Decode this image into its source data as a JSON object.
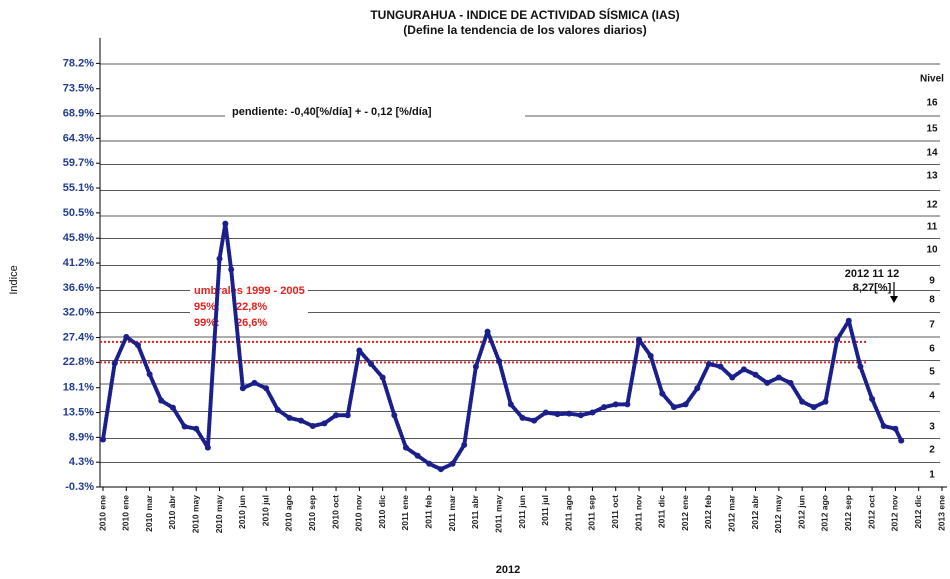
{
  "chart_data": {
    "type": "scatter",
    "title": "TUNGURAHUA - INDICE DE ACTIVIDAD SÍSMICA (IAS)",
    "subtitle": "(Define la tendencia de los valores diarios)",
    "y_label": "Indice",
    "x_label": "2012",
    "xlim": [
      0,
      36
    ],
    "xticks": [
      {
        "value": 0,
        "label": "2010 ene"
      },
      {
        "value": 1,
        "label": "2010 ene"
      },
      {
        "value": 2,
        "label": "2010 mar"
      },
      {
        "value": 3,
        "label": "2010 abr"
      },
      {
        "value": 4,
        "label": "2010 may"
      },
      {
        "value": 5,
        "label": "2010 may"
      },
      {
        "value": 6,
        "label": "2010 jun"
      },
      {
        "value": 7,
        "label": "2010 jul"
      },
      {
        "value": 8,
        "label": "2010 ago"
      },
      {
        "value": 9,
        "label": "2010 sep"
      },
      {
        "value": 10,
        "label": "2010 oct"
      },
      {
        "value": 11,
        "label": "2010 nov"
      },
      {
        "value": 12,
        "label": "2010 dic"
      },
      {
        "value": 13,
        "label": "2011 ene"
      },
      {
        "value": 14,
        "label": "2011 feb"
      },
      {
        "value": 15,
        "label": "2011 mar"
      },
      {
        "value": 16,
        "label": "2011 abr"
      },
      {
        "value": 17,
        "label": "2011 may"
      },
      {
        "value": 18,
        "label": "2011 jun"
      },
      {
        "value": 19,
        "label": "2011 jul"
      },
      {
        "value": 20,
        "label": "2011 ago"
      },
      {
        "value": 21,
        "label": "2011 sep"
      },
      {
        "value": 22,
        "label": "2011 oct"
      },
      {
        "value": 23,
        "label": "2011 nov"
      },
      {
        "value": 24,
        "label": "2011 dic"
      },
      {
        "value": 25,
        "label": "2012 ene"
      },
      {
        "value": 26,
        "label": "2012 feb"
      },
      {
        "value": 27,
        "label": "2012 mar"
      },
      {
        "value": 28,
        "label": "2012 abr"
      },
      {
        "value": 29,
        "label": "2012 may"
      },
      {
        "value": 30,
        "label": "2012 jun"
      },
      {
        "value": 31,
        "label": "2012 ago"
      },
      {
        "value": 32,
        "label": "2012 sep"
      },
      {
        "value": 33,
        "label": "2012 oct"
      },
      {
        "value": 34,
        "label": "2012 nov"
      },
      {
        "value": 35,
        "label": "2012 dic"
      },
      {
        "value": 36,
        "label": "2013 ene"
      }
    ],
    "ylim": [
      -0.3,
      82.9
    ],
    "yticks": [
      {
        "value": -0.3,
        "label": "-0.3%"
      },
      {
        "value": 4.3,
        "label": "4.3%"
      },
      {
        "value": 8.9,
        "label": "8.9%"
      },
      {
        "value": 13.5,
        "label": "13.5%"
      },
      {
        "value": 18.1,
        "label": "18.1%"
      },
      {
        "value": 22.8,
        "label": "22.8%"
      },
      {
        "value": 27.4,
        "label": "27.4%"
      },
      {
        "value": 32.0,
        "label": "32.0%"
      },
      {
        "value": 36.6,
        "label": "36.6%"
      },
      {
        "value": 41.2,
        "label": "41.2%"
      },
      {
        "value": 45.8,
        "label": "45.8%"
      },
      {
        "value": 50.5,
        "label": "50.5%"
      },
      {
        "value": 55.1,
        "label": "55.1%"
      },
      {
        "value": 59.7,
        "label": "59.7%"
      },
      {
        "value": 64.3,
        "label": "64.3%"
      },
      {
        "value": 68.9,
        "label": "68.9%"
      },
      {
        "value": 73.5,
        "label": "73.5%"
      },
      {
        "value": 78.2,
        "label": "78.2%"
      }
    ],
    "series": [
      {
        "color": "#1a1f8c",
        "x": [
          0,
          0.5,
          1,
          1.5,
          2,
          2.5,
          3,
          3.5,
          4,
          4.5,
          5,
          5.25,
          5.5,
          6,
          6.5,
          7,
          7.5,
          8,
          8.5,
          9,
          9.5,
          10,
          10.5,
          11,
          11.5,
          12,
          12.5,
          13,
          13.5,
          14,
          14.5,
          15,
          15.5,
          16,
          16.5,
          17,
          17.5,
          18,
          18.5,
          19,
          19.5,
          20,
          20.5,
          21,
          21.5,
          22,
          22.5,
          23,
          23.5,
          24,
          24.5,
          25,
          25.5,
          26,
          26.5,
          27,
          27.5,
          28,
          28.5,
          29,
          29.5,
          30,
          30.5,
          31,
          31.5,
          32,
          32.5,
          33,
          33.5,
          34,
          34.25
        ],
        "values": [
          8.5,
          22.6,
          27.5,
          26,
          20.6,
          15.7,
          14.4,
          10.9,
          10.5,
          7,
          42,
          48.5,
          40,
          18,
          19,
          18,
          14,
          12.5,
          12,
          11,
          11.5,
          13,
          13,
          25,
          22.5,
          20,
          13,
          7,
          5.5,
          4,
          3,
          4,
          7.5,
          22,
          28.5,
          23,
          15,
          12.5,
          12,
          13.5,
          13.2,
          13.3,
          13,
          13.5,
          14.5,
          15,
          15,
          27,
          24,
          17,
          14.5,
          15,
          18,
          22.5,
          22,
          20,
          21.5,
          20.5,
          19,
          20,
          19,
          15.5,
          14.5,
          15.5,
          27,
          30.5,
          22,
          16,
          11,
          10.5,
          8.3
        ]
      }
    ],
    "thresholds": {
      "title": "umbrales 1999 - 2005",
      "color": "#e8211c",
      "items": [
        {
          "label": "95%:",
          "value": 22.8,
          "value_label": "22,8%"
        },
        {
          "label": "99%:",
          "value": 26.6,
          "value_label": "26,6%"
        }
      ]
    },
    "annotations": {
      "slope": "pendiente:   -0,40[%/día] + - 0,12 [%/día]",
      "date": "2012  11  12",
      "last_value": "8,27[%]"
    },
    "levels": {
      "title": "Nivel",
      "labels": [
        "16",
        "15",
        "14",
        "13",
        "12",
        "11",
        "10",
        "9",
        "8",
        "7",
        "6",
        "5",
        "4",
        "3",
        "2",
        "1"
      ]
    }
  }
}
